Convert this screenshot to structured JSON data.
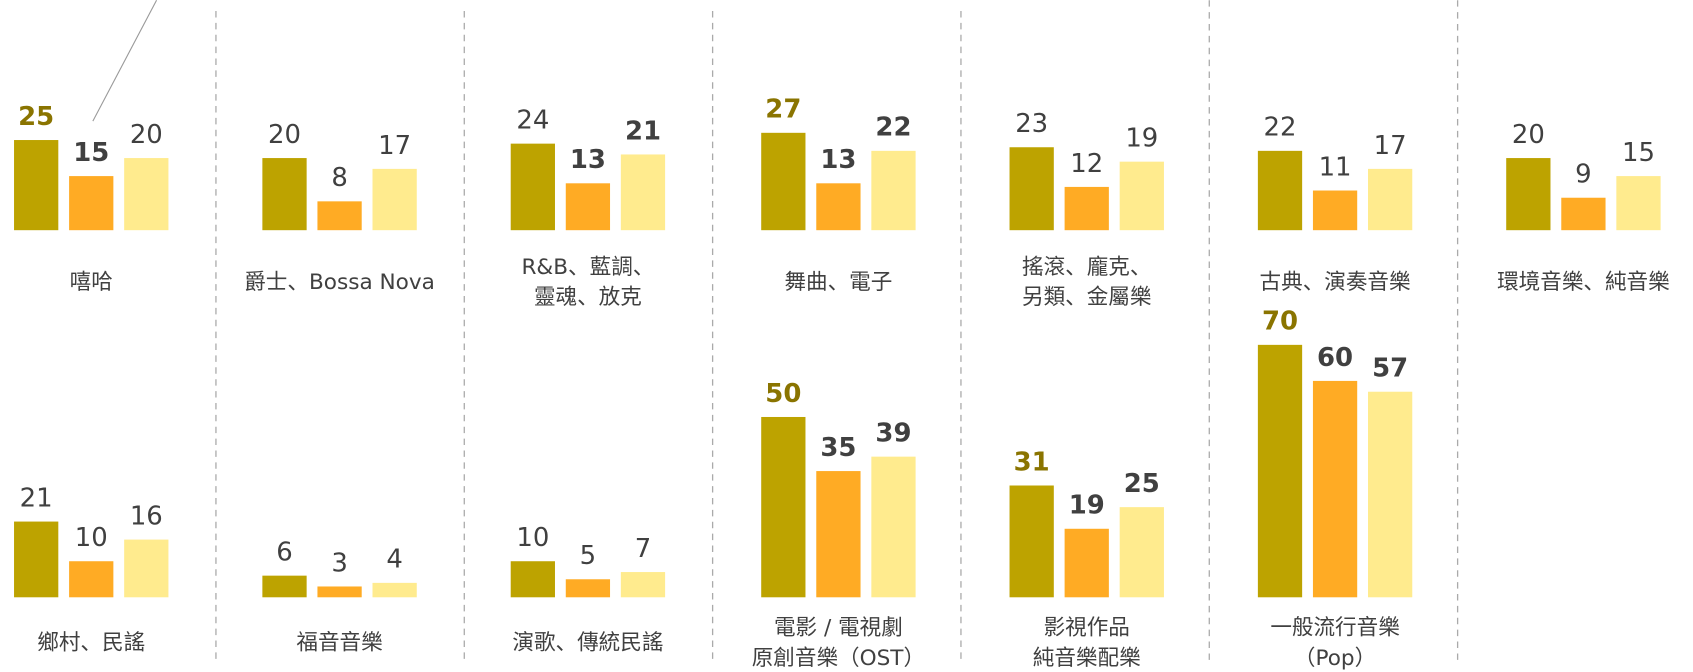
{
  "chart_data": {
    "type": "bar",
    "colors": [
      "#bda300",
      "#ffab24",
      "#ffeb8e"
    ],
    "emphasis_color": "#8a7400",
    "panels": [
      {
        "label": [
          "嘻哈"
        ],
        "values": [
          25,
          15,
          20
        ],
        "bold": [
          true,
          true,
          false
        ],
        "row": 0,
        "col": 0
      },
      {
        "label": [
          "爵士、Bossa Nova"
        ],
        "values": [
          20,
          8,
          17
        ],
        "bold": [
          false,
          false,
          false
        ],
        "row": 0,
        "col": 1
      },
      {
        "label": [
          "R&B、藍調、",
          "靈魂、放克"
        ],
        "values": [
          24,
          13,
          21
        ],
        "bold": [
          false,
          true,
          true
        ],
        "row": 0,
        "col": 2
      },
      {
        "label": [
          "舞曲、電子"
        ],
        "values": [
          27,
          13,
          22
        ],
        "bold": [
          true,
          true,
          true
        ],
        "row": 0,
        "col": 3
      },
      {
        "label": [
          "搖滾、龐克、",
          "另類、金屬樂"
        ],
        "values": [
          23,
          12,
          19
        ],
        "bold": [
          false,
          false,
          false
        ],
        "row": 0,
        "col": 4
      },
      {
        "label": [
          "古典、演奏音樂"
        ],
        "values": [
          22,
          11,
          17
        ],
        "bold": [
          false,
          false,
          false
        ],
        "row": 0,
        "col": 5
      },
      {
        "label": [
          "環境音樂、純音樂"
        ],
        "values": [
          20,
          9,
          15
        ],
        "bold": [
          false,
          false,
          false
        ],
        "row": 0,
        "col": 6
      },
      {
        "label": [
          "鄉村、民謠"
        ],
        "values": [
          21,
          10,
          16
        ],
        "bold": [
          false,
          false,
          false
        ],
        "row": 1,
        "col": 0
      },
      {
        "label": [
          "福音音樂"
        ],
        "values": [
          6,
          3,
          4
        ],
        "bold": [
          false,
          false,
          false
        ],
        "row": 1,
        "col": 1
      },
      {
        "label": [
          "演歌、傳統民謠"
        ],
        "values": [
          10,
          5,
          7
        ],
        "bold": [
          false,
          false,
          false
        ],
        "row": 1,
        "col": 2
      },
      {
        "label": [
          "電影 / 電視劇",
          "原創音樂（OST）"
        ],
        "values": [
          50,
          35,
          39
        ],
        "bold": [
          true,
          true,
          true
        ],
        "row": 1,
        "col": 3
      },
      {
        "label": [
          "影視作品",
          "純音樂配樂"
        ],
        "values": [
          31,
          19,
          25
        ],
        "bold": [
          true,
          true,
          true
        ],
        "row": 1,
        "col": 4
      },
      {
        "label": [
          "一般流行音樂",
          "（Pop）"
        ],
        "values": [
          70,
          60,
          57
        ],
        "bold": [
          true,
          true,
          true
        ],
        "row": 1,
        "col": 5
      }
    ]
  }
}
